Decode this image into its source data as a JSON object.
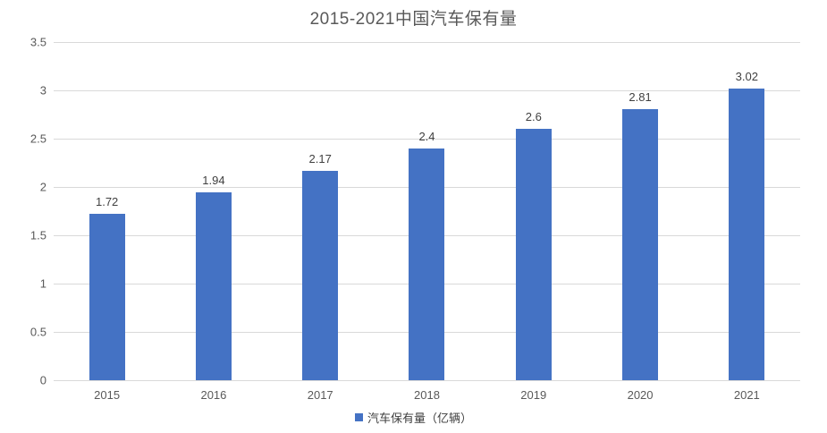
{
  "chart_data": {
    "type": "bar",
    "title": "2015-2021中国汽车保有量",
    "categories": [
      "2015",
      "2016",
      "2017",
      "2018",
      "2019",
      "2020",
      "2021"
    ],
    "values": [
      1.72,
      1.94,
      2.17,
      2.4,
      2.6,
      2.81,
      3.02
    ],
    "value_labels": [
      "1.72",
      "1.94",
      "2.17",
      "2.4",
      "2.6",
      "2.81",
      "3.02"
    ],
    "xlabel": "",
    "ylabel": "",
    "ylim": [
      0,
      3.5
    ],
    "y_ticks": [
      0,
      0.5,
      1,
      1.5,
      2,
      2.5,
      3,
      3.5
    ],
    "y_tick_labels": [
      "0",
      "0.5",
      "1",
      "1.5",
      "2",
      "2.5",
      "3",
      "3.5"
    ],
    "grid": "horizontal",
    "legend_position": "bottom",
    "legend": [
      {
        "label": "汽车保有量（亿辆）",
        "color": "#4472c4"
      }
    ],
    "colors": {
      "bar": "#4472c4",
      "gridline": "#d9d9d9",
      "title_text": "#595959",
      "axis_text": "#595959",
      "data_label_text": "#404040"
    }
  }
}
